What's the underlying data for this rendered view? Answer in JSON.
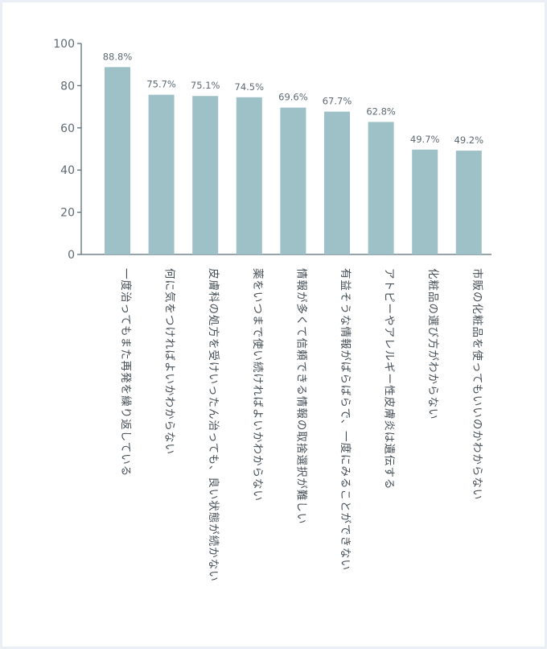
{
  "chart_data": {
    "type": "bar",
    "categories": [
      "一度治ってもまた再発を繰り返している",
      "何に気をつければよいかわからない",
      "皮膚科の処方を受けいったん治っても、良い状態が続かない",
      "薬をいつまで使い続ければよいかわからない",
      "情報が多くて信頼できる情報の取捨選択が難しい",
      "有益そうな情報がばらばらで、一度にみることができない",
      "アトピーやアレルギー性皮膚炎は遺伝する",
      "化粧品の選び方がわからない",
      "市販の化粧品を使ってもいいのかわからない"
    ],
    "values": [
      88.8,
      75.7,
      75.1,
      74.5,
      69.6,
      67.7,
      62.8,
      49.7,
      49.2
    ],
    "data_labels": [
      "88.8%",
      "75.7%",
      "75.1%",
      "74.5%",
      "69.6%",
      "67.7%",
      "62.8%",
      "49.7%",
      "49.2%"
    ],
    "ylim": [
      0,
      100
    ],
    "yticks": [
      0,
      20,
      40,
      60,
      80,
      100
    ],
    "ytick_labels": [
      "0",
      "20",
      "40",
      "60",
      "80",
      "100"
    ],
    "title": "",
    "xlabel": "",
    "ylabel": "",
    "grid": false,
    "legend": "none",
    "colors": {
      "bar": "#9dc1c6",
      "axis": "#5b6e7a",
      "text": "#5c6a72",
      "category_text": "#444e55",
      "background": "#ffffff",
      "border": "#e9eff4"
    }
  }
}
